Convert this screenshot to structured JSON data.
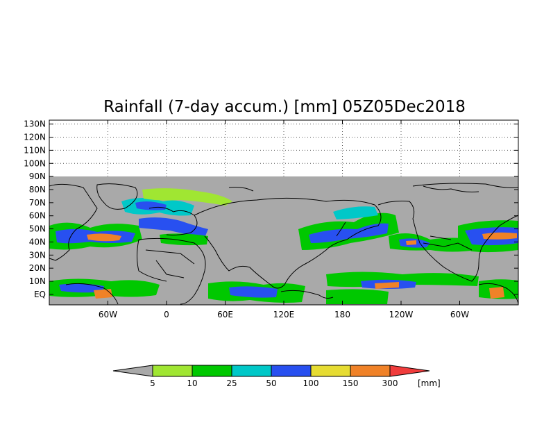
{
  "title": "Rainfall (7-day accum.) [mm] 05Z05Dec2018",
  "axes": {
    "lat_labels": [
      "130N",
      "120N",
      "110N",
      "100N",
      "90N",
      "80N",
      "70N",
      "60N",
      "50N",
      "40N",
      "30N",
      "20N",
      "10N",
      "EQ"
    ],
    "lon_labels": [
      "60W",
      "0",
      "60E",
      "120E",
      "180",
      "120W",
      "60W"
    ],
    "lat_range": [
      -8,
      133
    ],
    "lon_range": [
      -120,
      360
    ],
    "grid": "dotted"
  },
  "map": {
    "background_color": "#a9a9a9",
    "data_top_latitude": 90,
    "coastline_color": "#000000"
  },
  "colorbar": {
    "unit": "[mm]",
    "bins": [
      {
        "label": "5",
        "color": "#a0e632"
      },
      {
        "label": "10",
        "color": "#00c800"
      },
      {
        "label": "25",
        "color": "#00c8c8"
      },
      {
        "label": "50",
        "color": "#2850f0"
      },
      {
        "label": "100",
        "color": "#e6dc32"
      },
      {
        "label": "150",
        "color": "#f08228"
      },
      {
        "label": "300",
        "color": "#f03c3c"
      }
    ],
    "low_color": "#a9a9a9",
    "high_color": "#f03c3c"
  }
}
